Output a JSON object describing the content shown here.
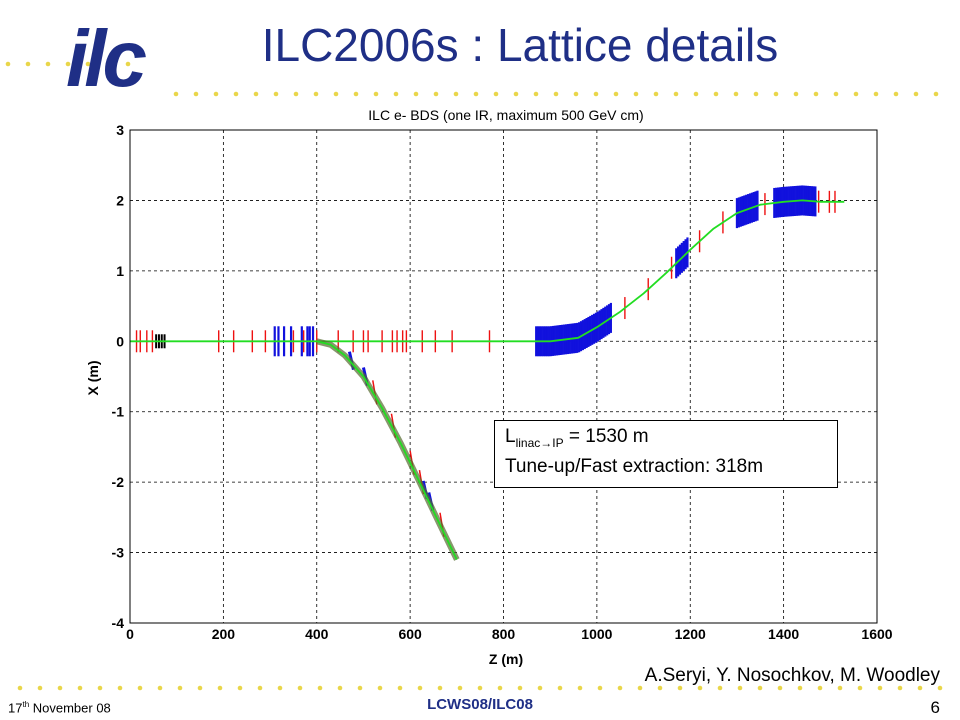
{
  "slide": {
    "title": "ILC2006s : Lattice details",
    "logo_text": "ilc",
    "authors": "A.Seryi, Y. Nosochkov, M. Woodley",
    "date_day": "17",
    "date_suffix": "th",
    "date_rest": " November 08",
    "conference": "LCWS08/ILC08",
    "page": "6"
  },
  "legend": {
    "line1_L": "L",
    "line1_sub": "linac→IP",
    "line1_rest": " = 1530 m",
    "line2": "Tune-up/Fast extraction: 318m"
  },
  "colors": {
    "brand": "#1f2f86",
    "dots": "#e9d64a",
    "beamline": "#22dd22",
    "magnet_red": "#ee1111",
    "magnet_blue": "#1111dd"
  },
  "chart_data": {
    "type": "line",
    "title": "ILC e- BDS (one IR, maximum 500 GeV cm)",
    "xlabel": "Z (m)",
    "ylabel": "X (m)",
    "xlim": [
      0,
      1600
    ],
    "ylim": [
      -4,
      3
    ],
    "xticks": [
      0,
      200,
      400,
      600,
      800,
      1000,
      1200,
      1400,
      1600
    ],
    "yticks": [
      3,
      2,
      1,
      0,
      -1,
      -2,
      -3,
      -4
    ],
    "grid": true,
    "series": [
      {
        "x": [
          0,
          400,
          860,
          900,
          960,
          1000,
          1050,
          1100,
          1150,
          1200,
          1250,
          1300,
          1350,
          1400,
          1440,
          1480,
          1530
        ],
        "y": [
          0,
          0,
          0,
          0,
          0.05,
          0.2,
          0.42,
          0.68,
          0.98,
          1.3,
          1.6,
          1.82,
          1.94,
          1.98,
          2.0,
          1.98,
          1.98
        ]
      },
      {
        "x": [
          400,
          430,
          460,
          500,
          540,
          580,
          620,
          660,
          700
        ],
        "y": [
          0,
          -0.05,
          -0.2,
          -0.5,
          -0.95,
          -1.45,
          -2.0,
          -2.55,
          -3.1
        ]
      }
    ]
  }
}
